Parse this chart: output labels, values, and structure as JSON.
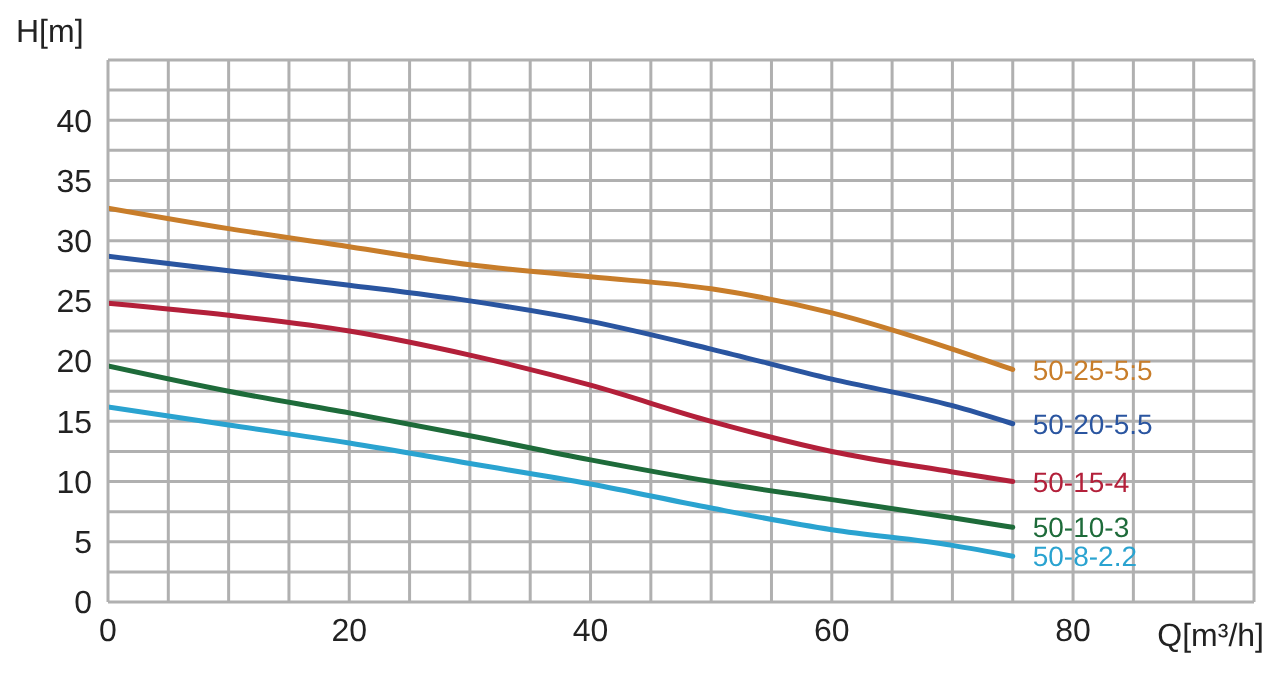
{
  "chart_data": {
    "type": "line",
    "xlabel": "Q[m³/h]",
    "ylabel": "H[m]",
    "x": [
      0,
      10,
      20,
      30,
      40,
      50,
      60,
      70,
      75
    ],
    "series": [
      {
        "name": "50-25-5:5",
        "color": "#c87d2a",
        "values": [
          32.7,
          31,
          29.5,
          28,
          27,
          26,
          24,
          21,
          19.3
        ]
      },
      {
        "name": "50-20-5.5",
        "color": "#2a55a0",
        "values": [
          28.7,
          27.5,
          26.3,
          25,
          23.3,
          21,
          18.5,
          16.3,
          14.8
        ]
      },
      {
        "name": "50-15-4",
        "color": "#b3203a",
        "values": [
          24.8,
          23.8,
          22.5,
          20.5,
          18,
          15,
          12.5,
          10.8,
          10
        ]
      },
      {
        "name": "50-10-3",
        "color": "#1e6b3a",
        "values": [
          19.6,
          17.5,
          15.7,
          13.8,
          11.8,
          10,
          8.5,
          7,
          6.2
        ]
      },
      {
        "name": "50-8-2.2",
        "color": "#2aa3d0",
        "values": [
          16.2,
          14.7,
          13.2,
          11.5,
          9.8,
          7.8,
          6,
          4.7,
          3.8
        ]
      }
    ],
    "xlim": [
      0,
      95
    ],
    "xticks": [
      0,
      {
        "value": 5,
        "label": null
      },
      {
        "value": 10,
        "label": null
      },
      {
        "value": 15,
        "label": null
      },
      20,
      {
        "value": 25,
        "label": null
      },
      {
        "value": 30,
        "label": null
      },
      {
        "value": 35,
        "label": null
      },
      40,
      {
        "value": 45,
        "label": null
      },
      {
        "value": 50,
        "label": null
      },
      {
        "value": 55,
        "label": null
      },
      60,
      {
        "value": 65,
        "label": null
      },
      {
        "value": 70,
        "label": null
      },
      {
        "value": 75,
        "label": null
      },
      80,
      {
        "value": 85,
        "label": null
      },
      {
        "value": 90,
        "label": null
      },
      {
        "value": 95,
        "label": null
      }
    ],
    "ylim": [
      0,
      45
    ],
    "yticks": [
      0,
      {
        "value": 2.5,
        "label": null
      },
      5,
      {
        "value": 7.5,
        "label": null
      },
      10,
      {
        "value": 12.5,
        "label": null
      },
      15,
      {
        "value": 17.5,
        "label": null
      },
      20,
      {
        "value": 22.5,
        "label": null
      },
      25,
      {
        "value": 27.5,
        "label": null
      },
      30,
      {
        "value": 32.5,
        "label": null
      },
      35,
      {
        "value": 37.5,
        "label": null
      },
      40,
      {
        "value": 42.5,
        "label": null
      },
      {
        "value": 45,
        "label": null
      }
    ],
    "grid": true,
    "legend": false,
    "marker": "none",
    "line_style": "solid"
  }
}
